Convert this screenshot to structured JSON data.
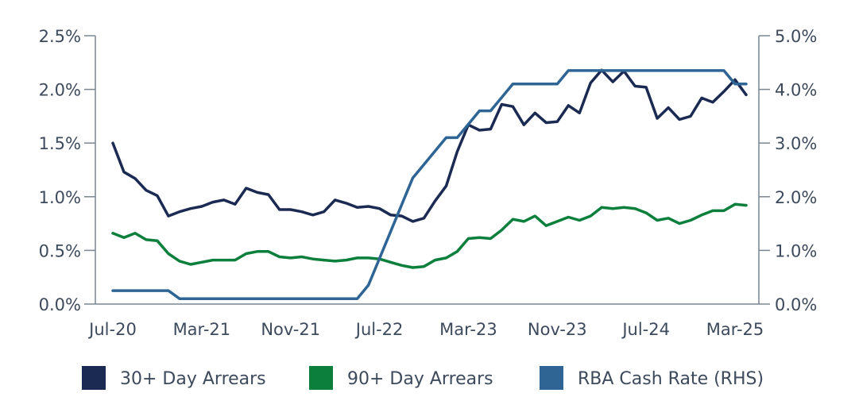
{
  "chart_data": {
    "type": "line",
    "title": "",
    "xlabel": "",
    "ylabel": "",
    "x_tick_labels": [
      "Jul-20",
      "Mar-21",
      "Nov-21",
      "Jul-22",
      "Mar-23",
      "Nov-23",
      "Jul-24",
      "Mar-25"
    ],
    "x_start": "2020-07",
    "x_end": "2025-04",
    "y_left": {
      "ticks": [
        "0.0%",
        "0.5%",
        "1.0%",
        "1.5%",
        "2.0%",
        "2.5%"
      ],
      "ylim": [
        0,
        2.5
      ],
      "unit": "%"
    },
    "y_right": {
      "ticks": [
        "0.0%",
        "1.0%",
        "2.0%",
        "3.0%",
        "4.0%",
        "5.0%"
      ],
      "ylim": [
        0,
        5.0
      ],
      "unit": "%"
    },
    "grid": false,
    "legend_position": "bottom",
    "series": [
      {
        "name": "30+ Day Arrears",
        "axis": "left",
        "color": "#1b2a52",
        "x": [
          "2020-07",
          "2020-08",
          "2020-09",
          "2020-10",
          "2020-11",
          "2020-12",
          "2021-01",
          "2021-02",
          "2021-03",
          "2021-04",
          "2021-05",
          "2021-06",
          "2021-07",
          "2021-08",
          "2021-09",
          "2021-10",
          "2021-11",
          "2021-12",
          "2022-01",
          "2022-02",
          "2022-03",
          "2022-04",
          "2022-05",
          "2022-06",
          "2022-07",
          "2022-08",
          "2022-09",
          "2022-10",
          "2022-11",
          "2022-12",
          "2023-01",
          "2023-02",
          "2023-03",
          "2023-04",
          "2023-05",
          "2023-06",
          "2023-07",
          "2023-08",
          "2023-09",
          "2023-10",
          "2023-11",
          "2023-12",
          "2024-01",
          "2024-02",
          "2024-03",
          "2024-04",
          "2024-05",
          "2024-06",
          "2024-07",
          "2024-08",
          "2024-09",
          "2024-10",
          "2024-11",
          "2024-12",
          "2025-01",
          "2025-02",
          "2025-03",
          "2025-04"
        ],
        "values": [
          1.5,
          1.23,
          1.17,
          1.06,
          1.01,
          0.82,
          0.86,
          0.89,
          0.91,
          0.95,
          0.97,
          0.93,
          1.08,
          1.04,
          1.02,
          0.88,
          0.88,
          0.86,
          0.83,
          0.86,
          0.97,
          0.94,
          0.9,
          0.91,
          0.89,
          0.83,
          0.82,
          0.77,
          0.8,
          0.96,
          1.1,
          1.42,
          1.67,
          1.62,
          1.63,
          1.86,
          1.84,
          1.67,
          1.78,
          1.69,
          1.7,
          1.85,
          1.78,
          2.06,
          2.18,
          2.07,
          2.17,
          2.03,
          2.02,
          1.73,
          1.83,
          1.72,
          1.75,
          1.92,
          1.88,
          1.98,
          2.09,
          1.95
        ]
      },
      {
        "name": "90+ Day Arrears",
        "axis": "left",
        "color": "#0b7f3b",
        "x": [
          "2020-07",
          "2020-08",
          "2020-09",
          "2020-10",
          "2020-11",
          "2020-12",
          "2021-01",
          "2021-02",
          "2021-03",
          "2021-04",
          "2021-05",
          "2021-06",
          "2021-07",
          "2021-08",
          "2021-09",
          "2021-10",
          "2021-11",
          "2021-12",
          "2022-01",
          "2022-02",
          "2022-03",
          "2022-04",
          "2022-05",
          "2022-06",
          "2022-07",
          "2022-08",
          "2022-09",
          "2022-10",
          "2022-11",
          "2022-12",
          "2023-01",
          "2023-02",
          "2023-03",
          "2023-04",
          "2023-05",
          "2023-06",
          "2023-07",
          "2023-08",
          "2023-09",
          "2023-10",
          "2023-11",
          "2023-12",
          "2024-01",
          "2024-02",
          "2024-03",
          "2024-04",
          "2024-05",
          "2024-06",
          "2024-07",
          "2024-08",
          "2024-09",
          "2024-10",
          "2024-11",
          "2024-12",
          "2025-01",
          "2025-02",
          "2025-03",
          "2025-04"
        ],
        "values": [
          0.66,
          0.62,
          0.66,
          0.6,
          0.59,
          0.47,
          0.4,
          0.37,
          0.39,
          0.41,
          0.41,
          0.41,
          0.47,
          0.49,
          0.49,
          0.44,
          0.43,
          0.44,
          0.42,
          0.41,
          0.4,
          0.41,
          0.43,
          0.43,
          0.42,
          0.39,
          0.36,
          0.34,
          0.35,
          0.41,
          0.43,
          0.49,
          0.61,
          0.62,
          0.61,
          0.69,
          0.79,
          0.77,
          0.82,
          0.73,
          0.77,
          0.81,
          0.78,
          0.82,
          0.9,
          0.89,
          0.9,
          0.89,
          0.85,
          0.78,
          0.8,
          0.75,
          0.78,
          0.83,
          0.87,
          0.87,
          0.93,
          0.92
        ]
      },
      {
        "name": "RBA Cash Rate (RHS)",
        "axis": "right",
        "color": "#2e6594",
        "x": [
          "2020-07",
          "2020-12",
          "2021-01",
          "2022-05",
          "2022-06",
          "2022-07",
          "2022-08",
          "2022-09",
          "2022-10",
          "2022-11",
          "2022-12",
          "2023-01",
          "2023-02",
          "2023-03",
          "2023-04",
          "2023-05",
          "2023-06",
          "2023-07",
          "2023-08",
          "2023-09",
          "2023-10",
          "2023-11",
          "2023-12",
          "2024-01",
          "2024-02",
          "2024-03",
          "2024-04",
          "2024-05",
          "2024-06",
          "2024-07",
          "2024-08",
          "2024-09",
          "2024-10",
          "2024-11",
          "2024-12",
          "2025-01",
          "2025-02",
          "2025-03",
          "2025-04"
        ],
        "values": [
          0.25,
          0.25,
          0.1,
          0.1,
          0.35,
          0.85,
          1.35,
          1.85,
          2.35,
          2.6,
          2.85,
          3.1,
          3.1,
          3.35,
          3.6,
          3.6,
          3.85,
          4.1,
          4.1,
          4.1,
          4.1,
          4.1,
          4.35,
          4.35,
          4.35,
          4.35,
          4.35,
          4.35,
          4.35,
          4.35,
          4.35,
          4.35,
          4.35,
          4.35,
          4.35,
          4.35,
          4.35,
          4.1,
          4.1
        ]
      }
    ]
  },
  "legend": {
    "items": [
      {
        "label": "30+ Day Arrears",
        "color": "#1b2a52"
      },
      {
        "label": "90+ Day Arrears",
        "color": "#0b7f3b"
      },
      {
        "label": "RBA Cash Rate (RHS)",
        "color": "#2e6594"
      }
    ]
  },
  "axis_color": "#7a8590"
}
